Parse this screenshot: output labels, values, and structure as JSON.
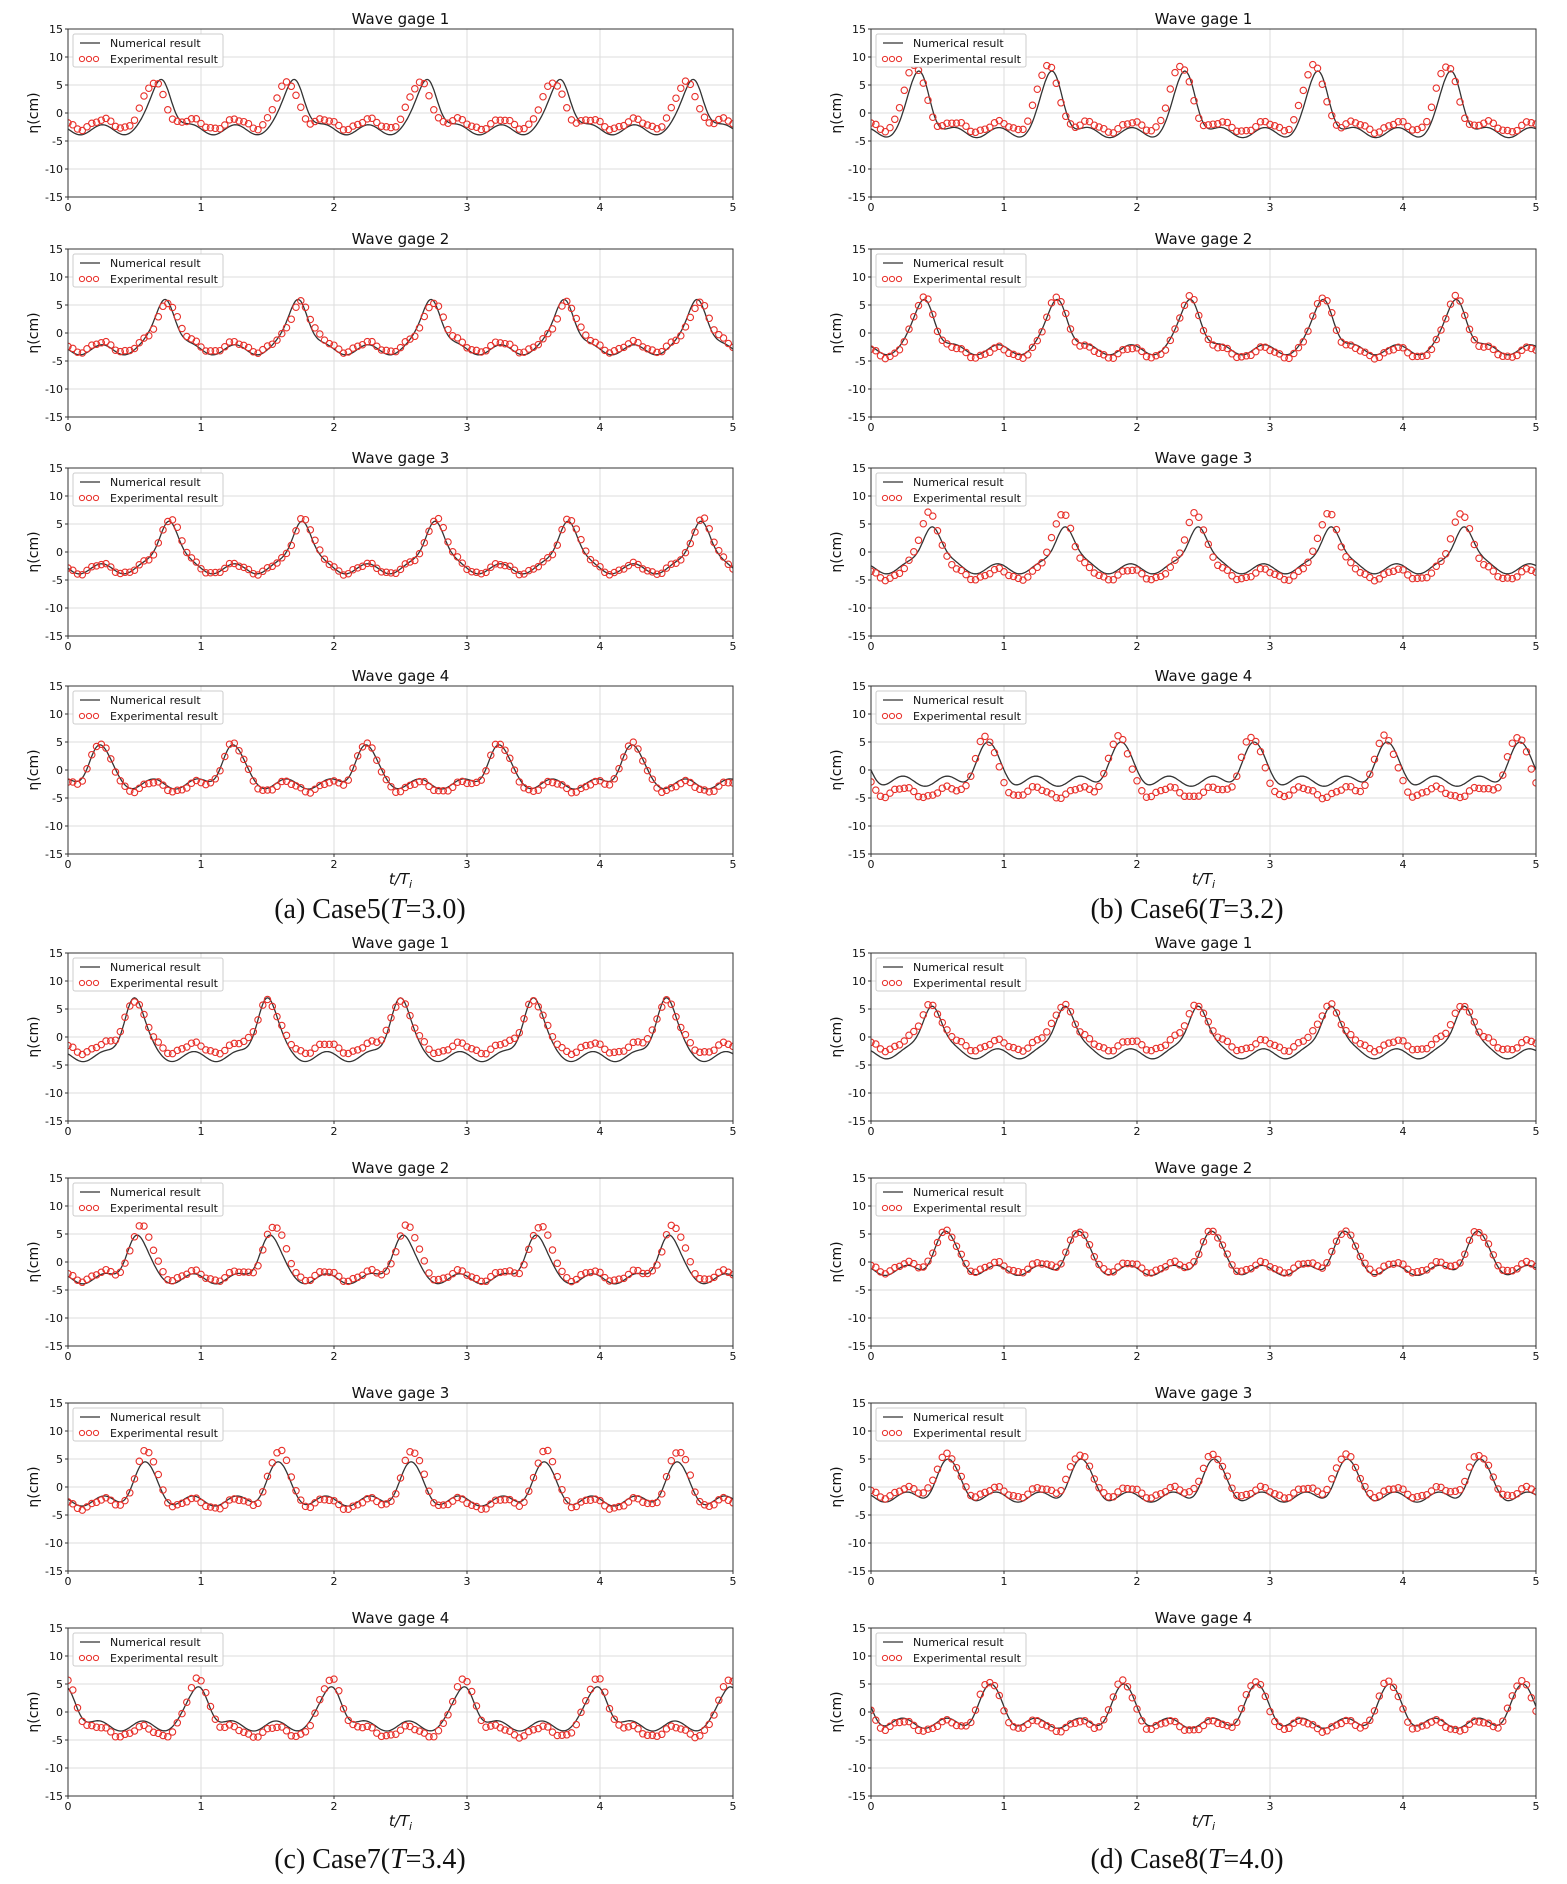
{
  "figure": {
    "y_axis_label": "η(cm)",
    "x_axis_label": "t/T",
    "x_axis_label_sub": "i",
    "legend": {
      "numerical": "Numerical result",
      "experimental": "Experimental result"
    },
    "captions": [
      {
        "prefix": "(a)  Case5(",
        "var": "T",
        "value": "=3.0)"
      },
      {
        "prefix": "(b)  Case6(",
        "var": "T",
        "value": "=3.2)"
      },
      {
        "prefix": "(c)  Case7(",
        "var": "T",
        "value": "=3.4)"
      },
      {
        "prefix": "(d)  Case8(",
        "var": "T",
        "value": "=4.0)"
      }
    ],
    "colors": {
      "numerical": "#333333",
      "experimental": "#e8302a",
      "grid": "#dddddd"
    }
  },
  "chart_data": [
    {
      "type": "line",
      "group": "a",
      "case": "Case5",
      "title": "Wave gage 1",
      "xlim": [
        0,
        5
      ],
      "ylim": [
        -15,
        15
      ],
      "xticks": [
        "0",
        "1",
        "2",
        "3",
        "4",
        "5"
      ],
      "yticks": [
        "15",
        "10",
        "5",
        "0",
        "-5",
        "-10",
        "-15"
      ],
      "grid": true,
      "legend_position": "top-left",
      "wave": {
        "num_crest": 0.7,
        "exp_crest": 0.65,
        "num_amp": 6.0,
        "exp_amp": 5.5,
        "num_trough": -3.0,
        "exp_trough": -2.0
      }
    },
    {
      "type": "line",
      "group": "a",
      "case": "Case5",
      "title": "Wave gage 2",
      "xlim": [
        0,
        5
      ],
      "ylim": [
        -15,
        15
      ],
      "xticks": [
        "0",
        "1",
        "2",
        "3",
        "4",
        "5"
      ],
      "yticks": [
        "15",
        "10",
        "5",
        "0",
        "-5",
        "-10",
        "-15"
      ],
      "grid": true,
      "legend_position": "top-left",
      "wave": {
        "num_crest": 0.73,
        "exp_crest": 0.75,
        "num_amp": 6.0,
        "exp_amp": 5.5,
        "num_trough": -3.0,
        "exp_trough": -2.5
      }
    },
    {
      "type": "line",
      "group": "a",
      "case": "Case5",
      "title": "Wave gage 3",
      "xlim": [
        0,
        5
      ],
      "ylim": [
        -15,
        15
      ],
      "xticks": [
        "0",
        "1",
        "2",
        "3",
        "4",
        "5"
      ],
      "yticks": [
        "15",
        "10",
        "5",
        "0",
        "-5",
        "-10",
        "-15"
      ],
      "grid": true,
      "legend_position": "top-left",
      "wave": {
        "num_crest": 0.76,
        "exp_crest": 0.77,
        "num_amp": 5.5,
        "exp_amp": 6.0,
        "num_trough": -3.0,
        "exp_trough": -3.0
      }
    },
    {
      "type": "line",
      "group": "a",
      "case": "Case5",
      "title": "Wave gage 4",
      "xlim": [
        0,
        5
      ],
      "ylim": [
        -15,
        15
      ],
      "xticks": [
        "0",
        "1",
        "2",
        "3",
        "4",
        "5"
      ],
      "yticks": [
        "15",
        "10",
        "5",
        "0",
        "-5",
        "-10",
        "-15"
      ],
      "grid": true,
      "legend_position": "top-left",
      "x_label": true,
      "wave": {
        "num_crest": 0.24,
        "exp_crest": 0.24,
        "num_amp": 4.5,
        "exp_amp": 4.8,
        "num_trough": -2.5,
        "exp_trough": -3.0
      }
    },
    {
      "type": "line",
      "group": "b",
      "case": "Case6",
      "title": "Wave gage 1",
      "xlim": [
        0,
        5
      ],
      "ylim": [
        -15,
        15
      ],
      "xticks": [
        "0",
        "1",
        "2",
        "3",
        "4",
        "5"
      ],
      "yticks": [
        "15",
        "10",
        "5",
        "0",
        "-5",
        "-10",
        "-15"
      ],
      "grid": true,
      "legend_position": "top-left",
      "wave": {
        "num_crest": 0.36,
        "exp_crest": 0.33,
        "num_amp": 7.5,
        "exp_amp": 8.5,
        "num_trough": -3.5,
        "exp_trough": -2.5
      }
    },
    {
      "type": "line",
      "group": "b",
      "case": "Case6",
      "title": "Wave gage 2",
      "xlim": [
        0,
        5
      ],
      "ylim": [
        -15,
        15
      ],
      "xticks": [
        "0",
        "1",
        "2",
        "3",
        "4",
        "5"
      ],
      "yticks": [
        "15",
        "10",
        "5",
        "0",
        "-5",
        "-10",
        "-15"
      ],
      "grid": true,
      "legend_position": "top-left",
      "wave": {
        "num_crest": 0.4,
        "exp_crest": 0.4,
        "num_amp": 6.0,
        "exp_amp": 6.5,
        "num_trough": -3.0,
        "exp_trough": -3.5
      }
    },
    {
      "type": "line",
      "group": "b",
      "case": "Case6",
      "title": "Wave gage 3",
      "xlim": [
        0,
        5
      ],
      "ylim": [
        -15,
        15
      ],
      "xticks": [
        "0",
        "1",
        "2",
        "3",
        "4",
        "5"
      ],
      "yticks": [
        "15",
        "10",
        "5",
        "0",
        "-5",
        "-10",
        "-15"
      ],
      "grid": true,
      "legend_position": "top-left",
      "wave": {
        "num_crest": 0.46,
        "exp_crest": 0.44,
        "num_amp": 4.5,
        "exp_amp": 7.0,
        "num_trough": -3.0,
        "exp_trough": -4.0
      }
    },
    {
      "type": "line",
      "group": "b",
      "case": "Case6",
      "title": "Wave gage 4",
      "xlim": [
        0,
        5
      ],
      "ylim": [
        -15,
        15
      ],
      "xticks": [
        "0",
        "1",
        "2",
        "3",
        "4",
        "5"
      ],
      "yticks": [
        "15",
        "10",
        "5",
        "0",
        "-5",
        "-10",
        "-15"
      ],
      "grid": true,
      "legend_position": "top-left",
      "x_label": true,
      "wave": {
        "num_crest": 0.88,
        "exp_crest": 0.86,
        "num_amp": 5.0,
        "exp_amp": 6.0,
        "num_trough": -2.0,
        "exp_trough": -4.0
      }
    },
    {
      "type": "line",
      "group": "c",
      "case": "Case7",
      "title": "Wave gage 1",
      "xlim": [
        0,
        5
      ],
      "ylim": [
        -15,
        15
      ],
      "xticks": [
        "0",
        "1",
        "2",
        "3",
        "4",
        "5"
      ],
      "yticks": [
        "15",
        "10",
        "5",
        "0",
        "-5",
        "-10",
        "-15"
      ],
      "grid": true,
      "legend_position": "top-left",
      "wave": {
        "num_crest": 0.5,
        "exp_crest": 0.5,
        "num_amp": 7.0,
        "exp_amp": 6.5,
        "num_trough": -3.5,
        "exp_trough": -2.0
      }
    },
    {
      "type": "line",
      "group": "c",
      "case": "Case7",
      "title": "Wave gage 2",
      "xlim": [
        0,
        5
      ],
      "ylim": [
        -15,
        15
      ],
      "xticks": [
        "0",
        "1",
        "2",
        "3",
        "4",
        "5"
      ],
      "yticks": [
        "15",
        "10",
        "5",
        "0",
        "-5",
        "-10",
        "-15"
      ],
      "grid": true,
      "legend_position": "top-left",
      "wave": {
        "num_crest": 0.52,
        "exp_crest": 0.55,
        "num_amp": 4.8,
        "exp_amp": 6.5,
        "num_trough": -3.0,
        "exp_trough": -2.5
      }
    },
    {
      "type": "line",
      "group": "c",
      "case": "Case7",
      "title": "Wave gage 3",
      "xlim": [
        0,
        5
      ],
      "ylim": [
        -15,
        15
      ],
      "xticks": [
        "0",
        "1",
        "2",
        "3",
        "4",
        "5"
      ],
      "yticks": [
        "15",
        "10",
        "5",
        "0",
        "-5",
        "-10",
        "-15"
      ],
      "grid": true,
      "legend_position": "top-left",
      "wave": {
        "num_crest": 0.58,
        "exp_crest": 0.59,
        "num_amp": 4.5,
        "exp_amp": 6.5,
        "num_trough": -2.5,
        "exp_trough": -3.0
      }
    },
    {
      "type": "line",
      "group": "c",
      "case": "Case7",
      "title": "Wave gage 4",
      "xlim": [
        0,
        5
      ],
      "ylim": [
        -15,
        15
      ],
      "xticks": [
        "0",
        "1",
        "2",
        "3",
        "4",
        "5"
      ],
      "yticks": [
        "15",
        "10",
        "5",
        "0",
        "-5",
        "-10",
        "-15"
      ],
      "grid": true,
      "legend_position": "top-left",
      "x_label": true,
      "wave": {
        "num_crest": 0.98,
        "exp_crest": 0.98,
        "num_amp": 4.5,
        "exp_amp": 6.0,
        "num_trough": -2.5,
        "exp_trough": -3.5
      }
    },
    {
      "type": "line",
      "group": "d",
      "case": "Case8",
      "title": "Wave gage 1",
      "xlim": [
        0,
        5
      ],
      "ylim": [
        -15,
        15
      ],
      "xticks": [
        "0",
        "1",
        "2",
        "3",
        "4",
        "5"
      ],
      "yticks": [
        "15",
        "10",
        "5",
        "0",
        "-5",
        "-10",
        "-15"
      ],
      "grid": true,
      "legend_position": "top-left",
      "wave": {
        "num_crest": 0.46,
        "exp_crest": 0.45,
        "num_amp": 5.5,
        "exp_amp": 5.8,
        "num_trough": -3.0,
        "exp_trough": -1.5
      }
    },
    {
      "type": "line",
      "group": "d",
      "case": "Case8",
      "title": "Wave gage 2",
      "xlim": [
        0,
        5
      ],
      "ylim": [
        -15,
        15
      ],
      "xticks": [
        "0",
        "1",
        "2",
        "3",
        "4",
        "5"
      ],
      "yticks": [
        "15",
        "10",
        "5",
        "0",
        "-5",
        "-10",
        "-15"
      ],
      "grid": true,
      "legend_position": "top-left",
      "wave": {
        "num_crest": 0.56,
        "exp_crest": 0.56,
        "num_amp": 5.5,
        "exp_amp": 5.5,
        "num_trough": -1.5,
        "exp_trough": -1.0
      }
    },
    {
      "type": "line",
      "group": "d",
      "case": "Case8",
      "title": "Wave gage 3",
      "xlim": [
        0,
        5
      ],
      "ylim": [
        -15,
        15
      ],
      "xticks": [
        "0",
        "1",
        "2",
        "3",
        "4",
        "5"
      ],
      "yticks": [
        "15",
        "10",
        "5",
        "0",
        "-5",
        "-10",
        "-15"
      ],
      "grid": true,
      "legend_position": "top-left",
      "wave": {
        "num_crest": 0.58,
        "exp_crest": 0.57,
        "num_amp": 5.0,
        "exp_amp": 5.8,
        "num_trough": -1.8,
        "exp_trough": -1.0
      }
    },
    {
      "type": "line",
      "group": "d",
      "case": "Case8",
      "title": "Wave gage 4",
      "xlim": [
        0,
        5
      ],
      "ylim": [
        -15,
        15
      ],
      "xticks": [
        "0",
        "1",
        "2",
        "3",
        "4",
        "5"
      ],
      "yticks": [
        "15",
        "10",
        "5",
        "0",
        "-5",
        "-10",
        "-15"
      ],
      "grid": true,
      "legend_position": "top-left",
      "x_label": true,
      "wave": {
        "num_crest": 0.9,
        "exp_crest": 0.89,
        "num_amp": 5.0,
        "exp_amp": 5.5,
        "num_trough": -2.0,
        "exp_trough": -2.5
      }
    }
  ]
}
